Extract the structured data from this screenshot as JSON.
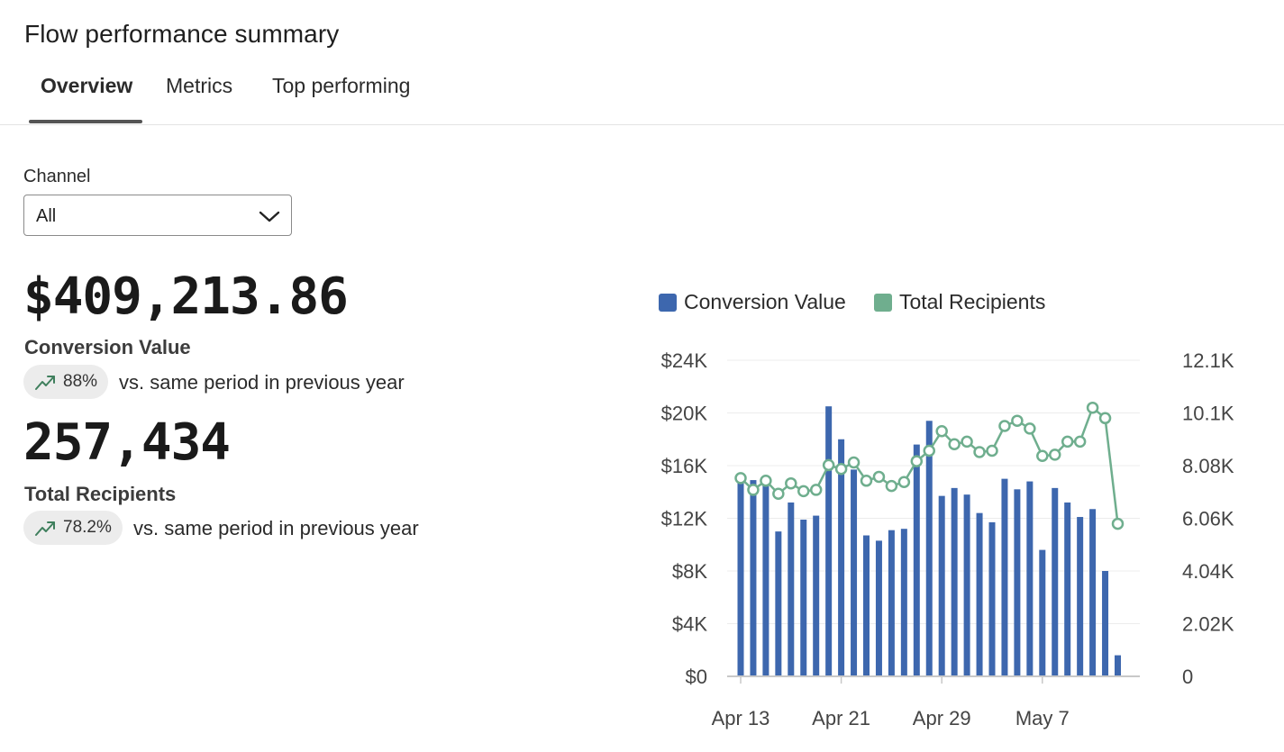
{
  "header": {
    "title": "Flow performance summary"
  },
  "tabs": [
    {
      "label": "Overview",
      "active": true
    },
    {
      "label": "Metrics",
      "active": false
    },
    {
      "label": "Top performing",
      "active": false
    }
  ],
  "filter": {
    "label": "Channel",
    "value": "All"
  },
  "metrics": {
    "conversion": {
      "value": "$409,213.86",
      "label": "Conversion Value",
      "change": "88%",
      "compare": "vs. same period in previous year"
    },
    "recipients": {
      "value": "257,434",
      "label": "Total Recipients",
      "change": "78.2%",
      "compare": "vs. same period in previous year"
    }
  },
  "colors": {
    "bar": "#3d67ae",
    "line": "#6fae8e",
    "trend": "#3f7f5d"
  },
  "chart_data": {
    "type": "bar+line",
    "legend": [
      "Conversion Value",
      "Total Recipients"
    ],
    "x_tick_labels": [
      "Apr 13",
      "Apr 21",
      "Apr 29",
      "May 7"
    ],
    "x_tick_indices": [
      0,
      8,
      16,
      24
    ],
    "y_left_ticks": [
      "$0",
      "$4K",
      "$8K",
      "$12K",
      "$16K",
      "$20K",
      "$24K"
    ],
    "y_left_range": [
      0,
      24000
    ],
    "y_right_ticks": [
      "0",
      "2.02K",
      "4.04K",
      "6.06K",
      "8.08K",
      "10.1K",
      "12.1K"
    ],
    "y_right_range": [
      0,
      12120
    ],
    "series": [
      {
        "name": "Conversion Value",
        "type": "bar",
        "values": [
          15000,
          14900,
          14700,
          11000,
          13200,
          11900,
          12200,
          20500,
          18000,
          15700,
          10700,
          10300,
          11100,
          11200,
          17600,
          19400,
          13700,
          14300,
          13800,
          12400,
          11700,
          15000,
          14200,
          14800,
          9600,
          14300,
          13200,
          12100,
          12700,
          8000,
          1600
        ]
      },
      {
        "name": "Total Recipients",
        "type": "line",
        "values": [
          7600,
          7150,
          7500,
          7000,
          7400,
          7100,
          7150,
          8100,
          7950,
          8200,
          7500,
          7650,
          7300,
          7450,
          8250,
          8650,
          9400,
          8900,
          9000,
          8600,
          8650,
          9600,
          9800,
          9500,
          8450,
          8500,
          9000,
          9000,
          10300,
          9900,
          5850
        ]
      }
    ]
  }
}
